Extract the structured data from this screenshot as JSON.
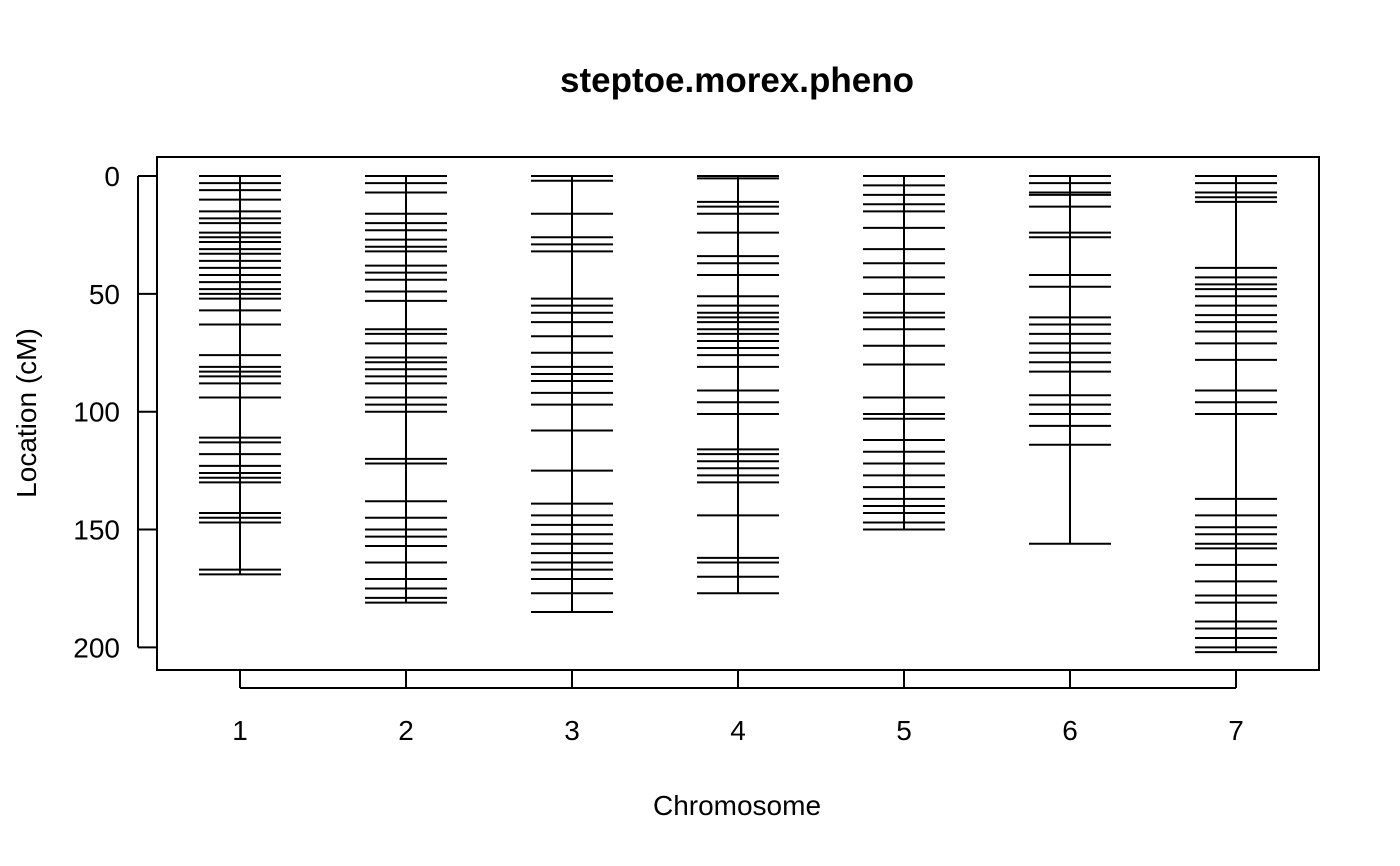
{
  "chart_data": {
    "type": "genetic-map",
    "title": "steptoe.morex.pheno",
    "xlabel": "Chromosome",
    "ylabel": "Location (cM)",
    "ylim": [
      0,
      210
    ],
    "y_reversed": true,
    "yticks": [
      0,
      50,
      100,
      150,
      200
    ],
    "grid": false,
    "legend": "none",
    "line_color": "#000000",
    "categories": [
      "1",
      "2",
      "3",
      "4",
      "5",
      "6",
      "7"
    ],
    "chromosomes": [
      {
        "name": "1",
        "markers": [
          0,
          3,
          6,
          10,
          15,
          18,
          20,
          24,
          26,
          28,
          31,
          33,
          36,
          39,
          42,
          45,
          48,
          50,
          52,
          57,
          63,
          76,
          81,
          83,
          85,
          88,
          94,
          111,
          113,
          118,
          123,
          126,
          128,
          130,
          143,
          145,
          147,
          167,
          169
        ]
      },
      {
        "name": "2",
        "markers": [
          0,
          3,
          7,
          16,
          20,
          23,
          27,
          30,
          32,
          38,
          41,
          44,
          49,
          53,
          65,
          67,
          71,
          77,
          79,
          82,
          85,
          88,
          94,
          97,
          100,
          120,
          122,
          138,
          145,
          150,
          153,
          157,
          164,
          171,
          175,
          179,
          181
        ]
      },
      {
        "name": "3",
        "markers": [
          0,
          2,
          16,
          26,
          29,
          32,
          52,
          55,
          58,
          62,
          68,
          75,
          81,
          84,
          87,
          92,
          97,
          108,
          125,
          139,
          144,
          148,
          152,
          156,
          160,
          164,
          167,
          171,
          177,
          185
        ]
      },
      {
        "name": "4",
        "markers": [
          0,
          1,
          11,
          13,
          16,
          24,
          34,
          37,
          42,
          51,
          55,
          58,
          60,
          62,
          65,
          67,
          70,
          73,
          76,
          81,
          91,
          96,
          101,
          116,
          118,
          121,
          124,
          127,
          130,
          144,
          162,
          164,
          170,
          177
        ]
      },
      {
        "name": "5",
        "markers": [
          0,
          4,
          8,
          12,
          15,
          22,
          31,
          37,
          43,
          50,
          58,
          60,
          65,
          72,
          80,
          94,
          101,
          103,
          112,
          117,
          122,
          127,
          132,
          137,
          140,
          143,
          147,
          150
        ]
      },
      {
        "name": "6",
        "markers": [
          0,
          3,
          7,
          8,
          13,
          24,
          26,
          42,
          47,
          60,
          63,
          67,
          71,
          75,
          79,
          83,
          93,
          97,
          101,
          106,
          114,
          156
        ]
      },
      {
        "name": "7",
        "markers": [
          0,
          3,
          7,
          9,
          11,
          39,
          43,
          46,
          48,
          51,
          55,
          59,
          62,
          66,
          71,
          78,
          91,
          96,
          101,
          137,
          144,
          149,
          152,
          156,
          158,
          165,
          172,
          178,
          181,
          189,
          192,
          196,
          200,
          202
        ]
      }
    ]
  }
}
